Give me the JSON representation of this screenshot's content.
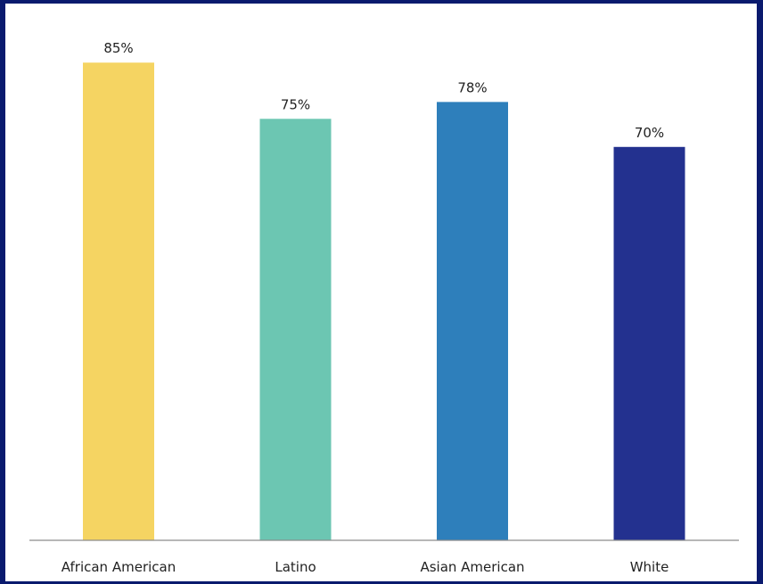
{
  "colors": {
    "frame": "#0a1a6e",
    "panel": "#ffffff",
    "axis": "#8c8c8c"
  },
  "chart_data": {
    "type": "bar",
    "title": "",
    "xlabel": "",
    "ylabel": "",
    "ylim": [
      0,
      100
    ],
    "grid": false,
    "legend": "none",
    "categories": [
      "African American",
      "Latino",
      "Asian American",
      "White"
    ],
    "values": [
      85,
      75,
      78,
      70
    ],
    "value_labels": [
      "85%",
      "75%",
      "78%",
      "70%"
    ],
    "bar_colors": [
      "#f5d462",
      "#6cc6b2",
      "#2e7fbb",
      "#23318f"
    ]
  }
}
